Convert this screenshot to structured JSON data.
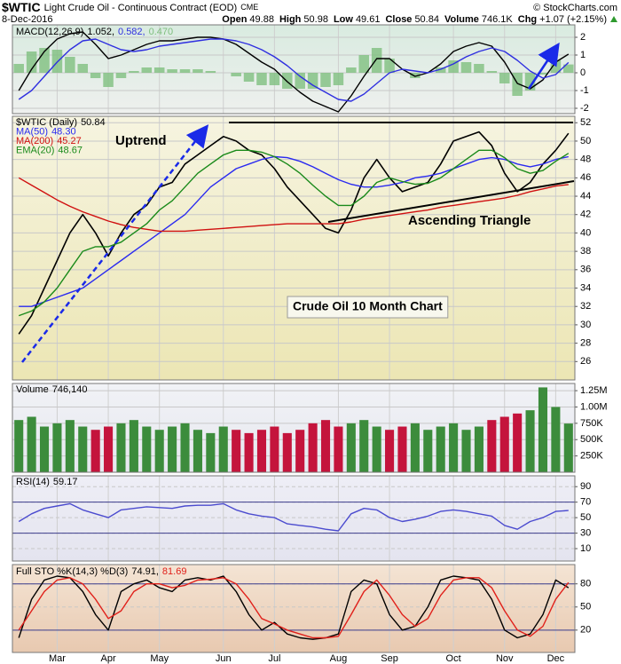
{
  "header": {
    "symbol": "$WTIC",
    "name": "Light Crude Oil - Continuous Contract (EOD)",
    "exchange": "CME",
    "date": "8-Dec-2016",
    "credit": "© StockCharts.com",
    "quote": [
      {
        "label": "Open",
        "value": "49.88"
      },
      {
        "label": "High",
        "value": "50.98"
      },
      {
        "label": "Low",
        "value": "49.61"
      },
      {
        "label": "Close",
        "value": "50.84"
      },
      {
        "label": "Volume",
        "value": "746.1K"
      },
      {
        "label": "Chg",
        "value": "+1.07 (+2.15%)"
      }
    ]
  },
  "chart_data": [
    {
      "type": "macd",
      "label": "MACD(12,26,9)",
      "legend": "inline",
      "ylim": [
        -2.3,
        2.7
      ],
      "yticks": [
        -2,
        -1,
        0,
        1,
        2
      ],
      "grid": true,
      "series": [
        {
          "style": "line",
          "color": "#000000",
          "legend_value": "1.052,",
          "values": [
            -1,
            0.2,
            1.2,
            1.9,
            2.2,
            2.3,
            1.6,
            0.8,
            1,
            1.3,
            1.6,
            1.8,
            1.8,
            1.9,
            2,
            2,
            1.9,
            1.6,
            1.1,
            0.6,
            0.2,
            -0.5,
            -1.1,
            -1.6,
            -1.9,
            -2.2,
            -1.3,
            -0.2,
            0.8,
            0.8,
            0.2,
            -0.2,
            0,
            0.5,
            1.2,
            1.5,
            1.7,
            1.5,
            0.6,
            -0.6,
            -0.9,
            -0.4,
            0.6,
            1.052
          ]
        },
        {
          "style": "line",
          "color": "#2f2fe0",
          "legend_value": "0.582,",
          "values": [
            -1.5,
            -1,
            -0.2,
            0.6,
            1.3,
            1.8,
            1.9,
            1.6,
            1.3,
            1.2,
            1.3,
            1.5,
            1.6,
            1.7,
            1.8,
            1.9,
            1.9,
            1.8,
            1.6,
            1.3,
            0.9,
            0.4,
            -0.2,
            -0.7,
            -1.1,
            -1.5,
            -1.6,
            -1.2,
            -0.6,
            0,
            0.2,
            0.1,
            0,
            0.2,
            0.5,
            0.9,
            1.2,
            1.4,
            1.2,
            0.7,
            0.1,
            -0.3,
            -0.1,
            0.582
          ]
        },
        {
          "style": "histogram",
          "color": "#7fbf7f",
          "legend_value": "0.470",
          "values": [
            0.5,
            1.2,
            1.4,
            1.3,
            0.9,
            0.5,
            -0.3,
            -0.8,
            -0.3,
            0.1,
            0.3,
            0.3,
            0.2,
            0.2,
            0.2,
            0.1,
            0,
            -0.2,
            -0.5,
            -0.7,
            -0.7,
            -0.9,
            -0.9,
            -0.9,
            -0.8,
            -0.7,
            0.3,
            1.0,
            1.4,
            0.8,
            0,
            -0.3,
            0,
            0.3,
            0.7,
            0.6,
            0.5,
            0.1,
            -0.6,
            -1.3,
            -1.0,
            -0.1,
            0.7,
            0.47
          ]
        }
      ]
    },
    {
      "type": "line",
      "legend": "stacked",
      "ylim": [
        24,
        52.7
      ],
      "yticks": [
        26,
        28,
        30,
        32,
        34,
        36,
        38,
        40,
        42,
        44,
        46,
        48,
        50,
        52
      ],
      "grid": true,
      "annotations": [
        "Uptrend",
        "Ascending Triangle",
        "Crude Oil 10 Month Chart"
      ],
      "series": [
        {
          "name": "$WTIC (Daily)",
          "legend_value": "50.84",
          "style": "line",
          "color": "#000000",
          "values": [
            29,
            31,
            34,
            37,
            40,
            42,
            40,
            37.5,
            40,
            42,
            43,
            45,
            45.5,
            47.5,
            48.5,
            49.5,
            50.5,
            50,
            49,
            48.5,
            47,
            45,
            43.5,
            42,
            40.5,
            40,
            42.5,
            46,
            48,
            46,
            44.5,
            45,
            45.5,
            47.5,
            50,
            50.5,
            51,
            49.5,
            46.5,
            44.5,
            45.5,
            47.5,
            49,
            50.84
          ]
        },
        {
          "name": "MA(50)",
          "legend_value": "48.30",
          "style": "line",
          "color": "#2a2af0",
          "values": [
            32,
            32,
            32.5,
            33,
            33.5,
            34,
            35,
            36,
            37,
            38,
            39,
            40,
            41,
            42,
            43.5,
            45,
            46,
            47,
            47.5,
            48,
            48.3,
            48.2,
            47.8,
            47.2,
            46.5,
            45.8,
            45.3,
            45,
            45,
            45.2,
            45.5,
            46,
            46.2,
            46.5,
            47,
            47.5,
            48,
            48.2,
            48,
            47.5,
            47.2,
            47.5,
            48,
            48.3
          ]
        },
        {
          "name": "MA(200)",
          "legend_value": "45.27",
          "style": "line",
          "color": "#d01010",
          "values": [
            46,
            45.2,
            44.4,
            43.6,
            42.9,
            42.3,
            41.8,
            41.3,
            40.9,
            40.6,
            40.4,
            40.2,
            40.2,
            40.2,
            40.3,
            40.4,
            40.5,
            40.6,
            40.7,
            40.8,
            40.9,
            41,
            41,
            41,
            41,
            41,
            41.2,
            41.5,
            41.7,
            41.9,
            42.1,
            42.3,
            42.5,
            42.8,
            43,
            43.2,
            43.4,
            43.6,
            43.8,
            44.1,
            44.5,
            44.8,
            45.1,
            45.27
          ]
        },
        {
          "name": "EMA(20)",
          "legend_value": "48.67",
          "style": "line",
          "color": "#1a8a1a",
          "values": [
            31,
            31.5,
            32.5,
            34,
            36,
            38,
            38.5,
            38.5,
            39,
            40,
            41,
            42.5,
            43.5,
            45,
            46.5,
            47.5,
            48.5,
            49,
            49,
            48.8,
            48.3,
            47.5,
            46.5,
            45.2,
            44,
            43,
            43,
            44,
            45.5,
            46,
            45.6,
            45.3,
            45.4,
            46,
            47,
            48,
            49,
            49,
            48.2,
            47,
            46.5,
            46.8,
            47.8,
            48.67
          ]
        }
      ]
    },
    {
      "type": "bar",
      "legend": "stacked",
      "ylim": [
        0,
        1360000
      ],
      "grid": true,
      "up_color": "#3c8c3c",
      "down_color": "#c4143c",
      "yticks": [
        {
          "value": 250000,
          "label": "250K"
        },
        {
          "value": 500000,
          "label": "500K"
        },
        {
          "value": 750000,
          "label": "750K"
        },
        {
          "value": 1000000,
          "label": "1.00M"
        },
        {
          "value": 1250000,
          "label": "1.25M"
        }
      ],
      "series": [
        {
          "name": "Volume",
          "legend_value": "746,140",
          "style": "bar",
          "values": [
            800000,
            850000,
            700000,
            750000,
            800000,
            700000,
            650000,
            700000,
            750000,
            800000,
            700000,
            650000,
            700000,
            750000,
            650000,
            600000,
            700000,
            650000,
            600000,
            650000,
            700000,
            600000,
            650000,
            750000,
            800000,
            700000,
            750000,
            800000,
            700000,
            650000,
            700000,
            750000,
            650000,
            700000,
            750000,
            650000,
            700000,
            800000,
            850000,
            900000,
            950000,
            1300000,
            1000000,
            746140
          ]
        }
      ]
    },
    {
      "type": "line",
      "legend": "stacked",
      "ylim": [
        -6,
        104
      ],
      "yticks": [
        10,
        30,
        50,
        70,
        90
      ],
      "grid": true,
      "ref_lines": [
        30,
        70
      ],
      "series": [
        {
          "name": "RSI(14)",
          "legend_value": "59.17",
          "style": "line",
          "color": "#4b4bcf",
          "values": [
            45,
            55,
            62,
            65,
            68,
            60,
            55,
            50,
            60,
            62,
            64,
            63,
            62,
            65,
            66,
            66,
            68,
            60,
            55,
            52,
            50,
            42,
            40,
            38,
            35,
            33,
            55,
            62,
            60,
            50,
            45,
            48,
            52,
            58,
            60,
            58,
            55,
            52,
            40,
            35,
            45,
            50,
            58,
            59.17
          ]
        }
      ]
    },
    {
      "type": "line",
      "label": "Full STO %K(14,3) %D(3)",
      "legend": "inline",
      "ylim": [
        -9,
        105
      ],
      "yticks": [
        20,
        50,
        80
      ],
      "grid": true,
      "ref_lines": [
        20,
        80
      ],
      "categories": [
        null,
        null,
        null,
        "Mar",
        null,
        null,
        null,
        "Apr",
        null,
        null,
        null,
        "May",
        null,
        null,
        null,
        null,
        "Jun",
        null,
        null,
        null,
        "Jul",
        null,
        null,
        null,
        null,
        "Aug",
        null,
        null,
        null,
        "Sep",
        null,
        null,
        null,
        null,
        "Oct",
        null,
        null,
        null,
        "Nov",
        null,
        null,
        null,
        "Dec",
        null
      ],
      "series": [
        {
          "style": "line",
          "color": "#000000",
          "legend_value": "74.91,",
          "values": [
            10,
            60,
            85,
            90,
            88,
            70,
            40,
            20,
            70,
            80,
            85,
            75,
            70,
            85,
            88,
            85,
            90,
            70,
            40,
            20,
            30,
            15,
            10,
            8,
            10,
            15,
            70,
            85,
            80,
            40,
            20,
            25,
            50,
            85,
            90,
            88,
            85,
            60,
            20,
            10,
            15,
            40,
            85,
            74.91
          ]
        },
        {
          "style": "line",
          "color": "#e0201a",
          "legend_value": "81.69",
          "values": [
            20,
            45,
            70,
            85,
            88,
            80,
            60,
            35,
            45,
            70,
            80,
            80,
            75,
            78,
            85,
            86,
            88,
            80,
            60,
            35,
            28,
            20,
            15,
            10,
            10,
            12,
            40,
            70,
            85,
            65,
            40,
            25,
            35,
            65,
            85,
            88,
            88,
            75,
            45,
            20,
            12,
            25,
            60,
            81.69
          ]
        }
      ]
    }
  ]
}
